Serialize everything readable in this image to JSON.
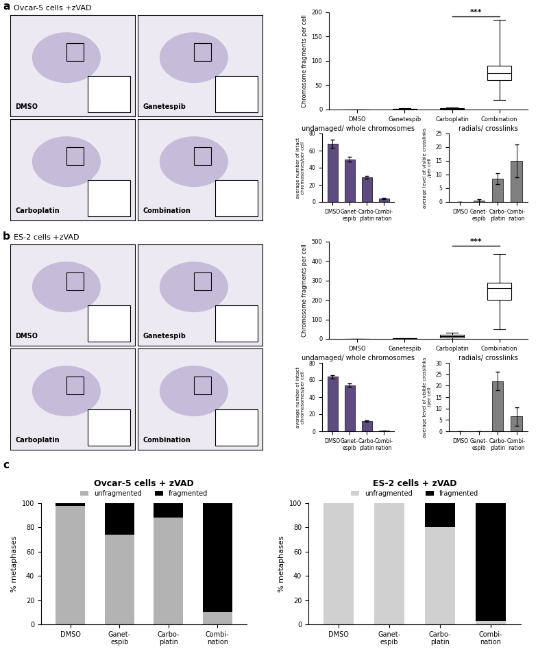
{
  "panel_letters": [
    "a",
    "b",
    "c"
  ],
  "image_panels": [
    {
      "title": "Ovcar-5 cells +zVAD",
      "labels": [
        "DMSO",
        "Ganetespib",
        "Carboplatin",
        "Combination"
      ]
    },
    {
      "title": "ES-2 cells +zVAD",
      "labels": [
        "DMSO",
        "Ganetespib",
        "Carboplatin",
        "Combination"
      ]
    }
  ],
  "chart_data": [
    {
      "type": "box",
      "categories": [
        "DMSO",
        "Ganetespib",
        "Carboplatin",
        "Combination"
      ],
      "ylabel": "Chromosome fragments per cell",
      "ylim": [
        0,
        200
      ],
      "yticks": [
        0,
        50,
        100,
        150,
        200
      ],
      "color": "#ffffff",
      "boxes": [
        {
          "low": 0,
          "q1": 0,
          "median": 0,
          "q3": 0,
          "high": 0
        },
        {
          "low": 0,
          "q1": 0.5,
          "median": 1,
          "q3": 1.5,
          "high": 3
        },
        {
          "low": 0,
          "q1": 1,
          "median": 2,
          "q3": 2.5,
          "high": 4
        },
        {
          "low": 20,
          "q1": 60,
          "median": 75,
          "q3": 90,
          "high": 185
        }
      ],
      "significance": {
        "between": [
          "Carboplatin",
          "Combination"
        ],
        "label": "***"
      }
    },
    {
      "type": "bar",
      "title": "undamaged/ whole chromosomes",
      "categories": [
        "DMSO",
        "Ganet-\nespib",
        "Carbo-\nplatin",
        "Combi-\nnation"
      ],
      "ylabel": "average number of intact\nchromosomes/per cell",
      "values": [
        68,
        50,
        29,
        4
      ],
      "errors": [
        5,
        3,
        1.5,
        1
      ],
      "color": "#5e4b80",
      "ylim": [
        0,
        80
      ],
      "yticks": [
        0,
        20,
        40,
        60,
        80
      ]
    },
    {
      "type": "bar",
      "title": "radials/ crosslinks",
      "categories": [
        "DMSO",
        "Ganet-\nespib",
        "Carbo-\nplatin",
        "Combi-\nnation"
      ],
      "ylabel": "average level of visible crosslinks\n/per cell",
      "values": [
        0,
        0.5,
        8.5,
        15
      ],
      "errors": [
        0,
        0.5,
        2,
        6
      ],
      "color": "#808080",
      "ylim": [
        0,
        25
      ],
      "yticks": [
        0,
        5,
        10,
        15,
        20,
        25
      ]
    },
    {
      "type": "box",
      "categories": [
        "DMSO",
        "Ganetespib",
        "Carboplatin",
        "Combination"
      ],
      "ylabel": "Chromosome fragments per cell",
      "ylim": [
        0,
        500
      ],
      "yticks": [
        0,
        100,
        200,
        300,
        400,
        500
      ],
      "color": "#ffffff",
      "boxes": [
        {
          "low": 0,
          "q1": 0,
          "median": 0,
          "q3": 0,
          "high": 0
        },
        {
          "low": 0,
          "q1": 1,
          "median": 2,
          "q3": 3,
          "high": 5
        },
        {
          "low": 0,
          "q1": 8,
          "median": 15,
          "q3": 20,
          "high": 30
        },
        {
          "low": 50,
          "q1": 200,
          "median": 260,
          "q3": 290,
          "high": 435
        }
      ],
      "significance": {
        "between": [
          "Carboplatin",
          "Combination"
        ],
        "label": "***"
      }
    },
    {
      "type": "bar",
      "title": "undamaged/ whole chromosomes",
      "categories": [
        "DMSO",
        "Ganet-\nespib",
        "Carbo-\nplatin",
        "Combi-\nnation"
      ],
      "ylabel": "average number of intact\nchromosomes/per cell",
      "values": [
        64,
        54,
        12,
        0.5
      ],
      "errors": [
        2,
        2,
        1,
        0.3
      ],
      "color": "#5e4b80",
      "ylim": [
        0,
        80
      ],
      "yticks": [
        0,
        20,
        40,
        60,
        80
      ]
    },
    {
      "type": "bar",
      "title": "radials/ crosslinks",
      "categories": [
        "DMSO",
        "Ganet-\nespib",
        "Carbo-\nplatin",
        "Combi-\nnation"
      ],
      "ylabel": "average level of visible crosslinks\n/per cell",
      "values": [
        0,
        0,
        22,
        6.5
      ],
      "errors": [
        0,
        0,
        4,
        4
      ],
      "color": "#808080",
      "ylim": [
        0,
        30
      ],
      "yticks": [
        0,
        5,
        10,
        15,
        20,
        25,
        30
      ]
    },
    {
      "type": "bar",
      "stacked": true,
      "title": "Ovcar-5 cells + zVAD",
      "ylabel": "% metaphases",
      "categories": [
        "DMSO",
        "Ganet-\nespib",
        "Carbo-\nplatin",
        "Combi-\nnation"
      ],
      "series": [
        {
          "name": "unfragmented",
          "color": "#b3b3b3",
          "values": [
            98,
            74,
            88,
            10
          ]
        },
        {
          "name": "fragmented",
          "color": "#000000",
          "values": [
            2,
            26,
            12,
            90
          ]
        }
      ],
      "ylim": [
        0,
        100
      ],
      "yticks": [
        0,
        20,
        40,
        60,
        80,
        100
      ],
      "legend": "top"
    },
    {
      "type": "bar",
      "stacked": true,
      "title": "ES-2 cells + zVAD",
      "ylabel": "% metaphases",
      "categories": [
        "DMSO",
        "Ganet-\nespib",
        "Carbo-\nplatin",
        "Combi-\nnation"
      ],
      "series": [
        {
          "name": "unfragmented",
          "color": "#d0d0d0",
          "values": [
            100,
            100,
            80,
            3
          ]
        },
        {
          "name": "fragmented",
          "color": "#000000",
          "values": [
            0,
            0,
            20,
            97
          ]
        }
      ],
      "ylim": [
        0,
        100
      ],
      "yticks": [
        0,
        20,
        40,
        60,
        80,
        100
      ],
      "legend": "top"
    }
  ]
}
